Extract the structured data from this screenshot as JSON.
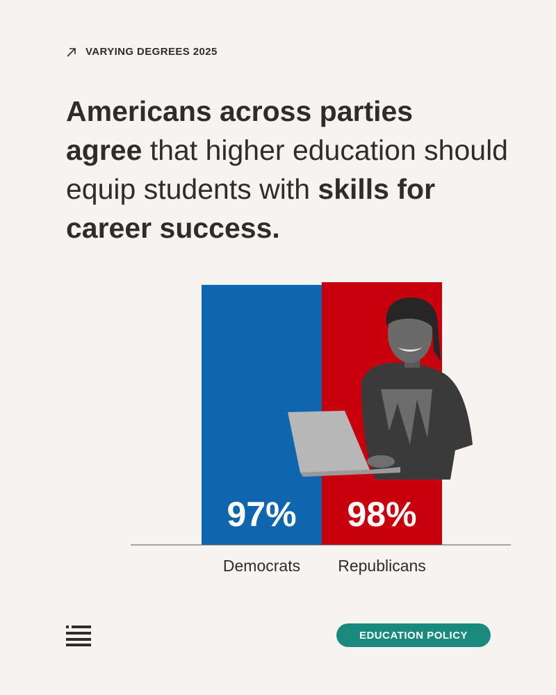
{
  "eyebrow": {
    "icon": "arrow-up-right-icon",
    "label": "VARYING DEGREES 2025"
  },
  "headline": {
    "part1_bold": "Americans across parties",
    "part2_bold": "agree",
    "part3": " that higher education should equip students with ",
    "part4_bold": "skills for career success."
  },
  "chart_data": {
    "type": "bar",
    "categories": [
      "Democrats",
      "Republicans"
    ],
    "values": [
      97,
      98
    ],
    "value_labels": [
      "97%",
      "98%"
    ],
    "colors": [
      "#0f65ae",
      "#c8000d"
    ],
    "ylim": [
      0,
      100
    ],
    "grid": false,
    "title": "",
    "xlabel": "",
    "ylabel": ""
  },
  "footer": {
    "menu_icon": "menu-icon",
    "badge_label": "EDUCATION POLICY"
  },
  "colors": {
    "background": "#f7f3f0",
    "badge": "#1a8a7f",
    "text": "#2d2d2d"
  }
}
